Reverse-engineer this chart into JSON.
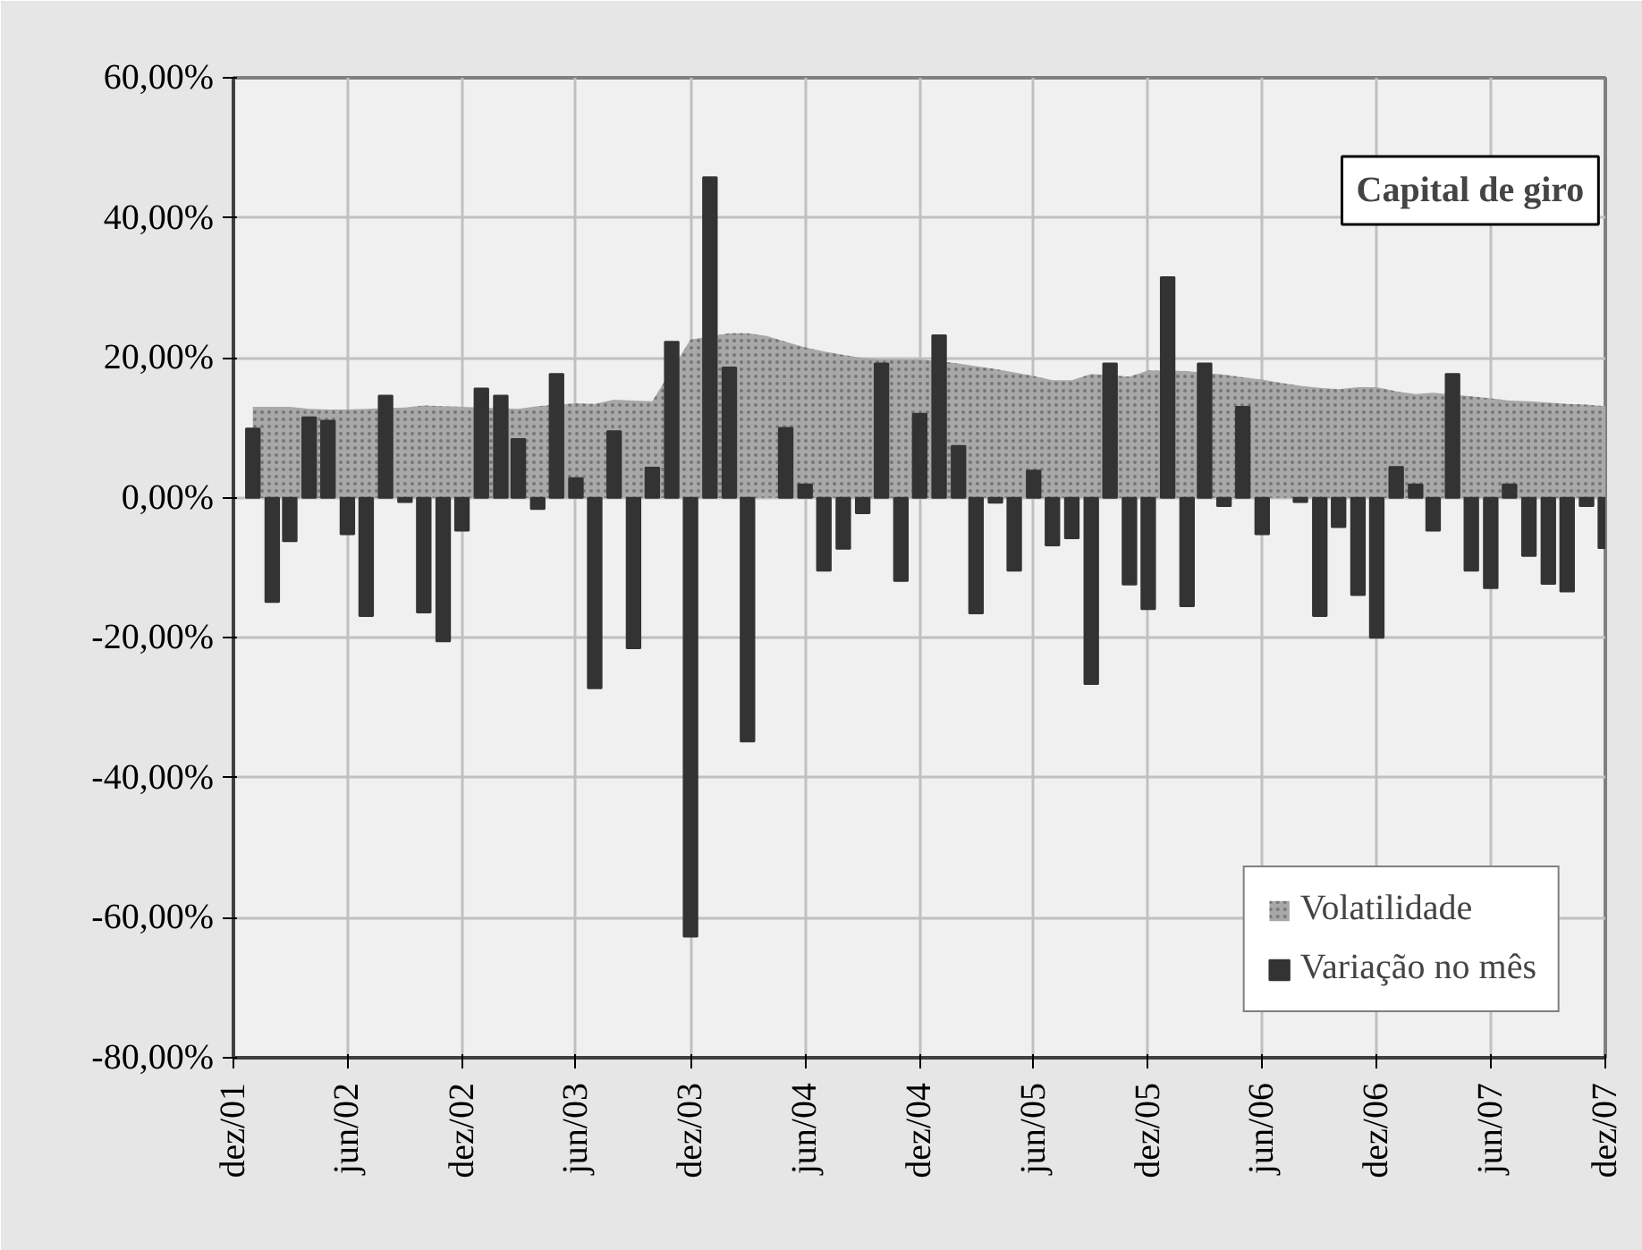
{
  "chart_data": {
    "type": "bar",
    "title": "Capital de giro",
    "x": [
      "2002-01",
      "2002-02",
      "2002-03",
      "2002-04",
      "2002-05",
      "2002-06",
      "2002-07",
      "2002-08",
      "2002-09",
      "2002-10",
      "2002-11",
      "2002-12",
      "2003-01",
      "2003-02",
      "2003-03",
      "2003-04",
      "2003-05",
      "2003-06",
      "2003-07",
      "2003-08",
      "2003-09",
      "2003-10",
      "2003-11",
      "2003-12",
      "2004-01",
      "2004-02",
      "2004-03",
      "2004-04",
      "2004-05",
      "2004-06",
      "2004-07",
      "2004-08",
      "2004-09",
      "2004-10",
      "2004-11",
      "2004-12",
      "2005-01",
      "2005-02",
      "2005-03",
      "2005-04",
      "2005-05",
      "2005-06",
      "2005-07",
      "2005-08",
      "2005-09",
      "2005-10",
      "2005-11",
      "2005-12",
      "2006-01",
      "2006-02",
      "2006-03",
      "2006-04",
      "2006-05",
      "2006-06",
      "2006-07",
      "2006-08",
      "2006-09",
      "2006-10",
      "2006-11",
      "2006-12",
      "2007-01",
      "2007-02",
      "2007-03",
      "2007-04",
      "2007-05",
      "2007-06",
      "2007-07",
      "2007-08",
      "2007-09",
      "2007-10",
      "2007-11",
      "2007-12"
    ],
    "series": [
      {
        "name": "Volatilidade",
        "type": "area",
        "color": "#a8a8a8",
        "x": [
          "2002-01",
          "2002-02",
          "2002-03",
          "2002-04",
          "2002-05",
          "2002-06",
          "2002-07",
          "2002-09",
          "2002-10",
          "2002-11",
          "2002-12",
          "2003-03",
          "2003-04",
          "2003-06",
          "2003-07",
          "2003-08",
          "2003-09",
          "2003-10",
          "2003-12",
          "2004-02",
          "2004-03",
          "2004-04",
          "2004-05",
          "2004-06",
          "2004-07",
          "2004-08",
          "2004-09",
          "2004-10",
          "2004-11",
          "2004-12",
          "2005-02",
          "2005-03",
          "2005-04",
          "2005-05",
          "2005-06",
          "2005-07",
          "2005-08",
          "2005-09",
          "2005-11",
          "2005-12",
          "2006-02",
          "2006-04",
          "2006-05",
          "2006-06",
          "2006-07",
          "2006-08",
          "2006-09",
          "2006-10",
          "2006-11",
          "2006-12",
          "2007-01",
          "2007-02",
          "2007-03",
          "2007-05",
          "2007-06",
          "2007-07",
          "2007-08",
          "2007-09",
          "2007-10",
          "2007-11",
          "2007-12"
        ],
        "values": [
          13.0,
          13.0,
          13.0,
          12.7,
          12.6,
          12.6,
          12.7,
          12.9,
          13.2,
          13.1,
          13.0,
          12.7,
          13.1,
          13.5,
          13.4,
          14.0,
          13.9,
          13.8,
          22.6,
          23.5,
          23.5,
          23.1,
          22.3,
          21.5,
          20.9,
          20.4,
          20.0,
          19.8,
          19.8,
          19.8,
          19.2,
          18.8,
          18.4,
          17.9,
          17.4,
          16.8,
          16.8,
          17.7,
          17.3,
          18.2,
          18.1,
          17.6,
          17.2,
          16.9,
          16.4,
          16.0,
          15.7,
          15.5,
          15.8,
          15.8,
          15.2,
          14.8,
          15.0,
          14.5,
          14.2,
          13.9,
          13.8,
          13.6,
          13.4,
          13.3,
          13.1
        ]
      },
      {
        "name": "Variação no mês",
        "color": "#333333",
        "values": [
          9.9,
          -14.9,
          -6.2,
          11.5,
          11.0,
          -5.2,
          -16.9,
          14.6,
          -0.6,
          -16.4,
          -20.5,
          -4.7,
          15.6,
          14.6,
          8.4,
          -1.6,
          17.7,
          2.8,
          -27.2,
          9.5,
          -21.5,
          4.3,
          22.3,
          -62.7,
          45.8,
          18.6,
          -34.8,
          null,
          10.0,
          1.9,
          -10.4,
          -7.3,
          -2.2,
          19.2,
          -11.9,
          12.0,
          23.2,
          7.4,
          -16.5,
          -0.7,
          -10.4,
          3.9,
          -6.8,
          -5.8,
          -26.6,
          19.2,
          -12.4,
          -15.9,
          31.5,
          -15.5,
          19.2,
          -1.2,
          13.0,
          -5.2,
          null,
          -0.6,
          -16.9,
          -4.2,
          -13.9,
          -20.0,
          4.4,
          1.9,
          -4.7,
          17.7,
          -10.4,
          -12.9,
          1.9,
          -8.3,
          -12.3,
          -13.4,
          -1.2,
          -7.2
        ]
      }
    ],
    "xlim": [
      "2001-12",
      "2007-12"
    ],
    "xticks": [
      {
        "value": "2001-12",
        "label": "dez/01"
      },
      {
        "value": "2002-06",
        "label": "jun/02"
      },
      {
        "value": "2002-12",
        "label": "dez/02"
      },
      {
        "value": "2003-06",
        "label": "jun/03"
      },
      {
        "value": "2003-12",
        "label": "dez/03"
      },
      {
        "value": "2004-06",
        "label": "jun/04"
      },
      {
        "value": "2004-12",
        "label": "dez/04"
      },
      {
        "value": "2005-06",
        "label": "jun/05"
      },
      {
        "value": "2005-12",
        "label": "dez/05"
      },
      {
        "value": "2006-06",
        "label": "jun/06"
      },
      {
        "value": "2006-12",
        "label": "dez/06"
      },
      {
        "value": "2007-06",
        "label": "jun/07"
      },
      {
        "value": "2007-12",
        "label": "dez/07"
      }
    ],
    "ylim": [
      -80,
      60
    ],
    "yticks": [
      {
        "value": -80,
        "label": "-80,00%"
      },
      {
        "value": -60,
        "label": "-60,00%"
      },
      {
        "value": -40,
        "label": "-40,00%"
      },
      {
        "value": -20,
        "label": "-20,00%"
      },
      {
        "value": 0,
        "label": "0,00%"
      },
      {
        "value": 20,
        "label": "20,00%"
      },
      {
        "value": 40,
        "label": "40,00%"
      },
      {
        "value": 60,
        "label": "60,00%"
      }
    ],
    "grid": true,
    "legend": "bottom right"
  }
}
